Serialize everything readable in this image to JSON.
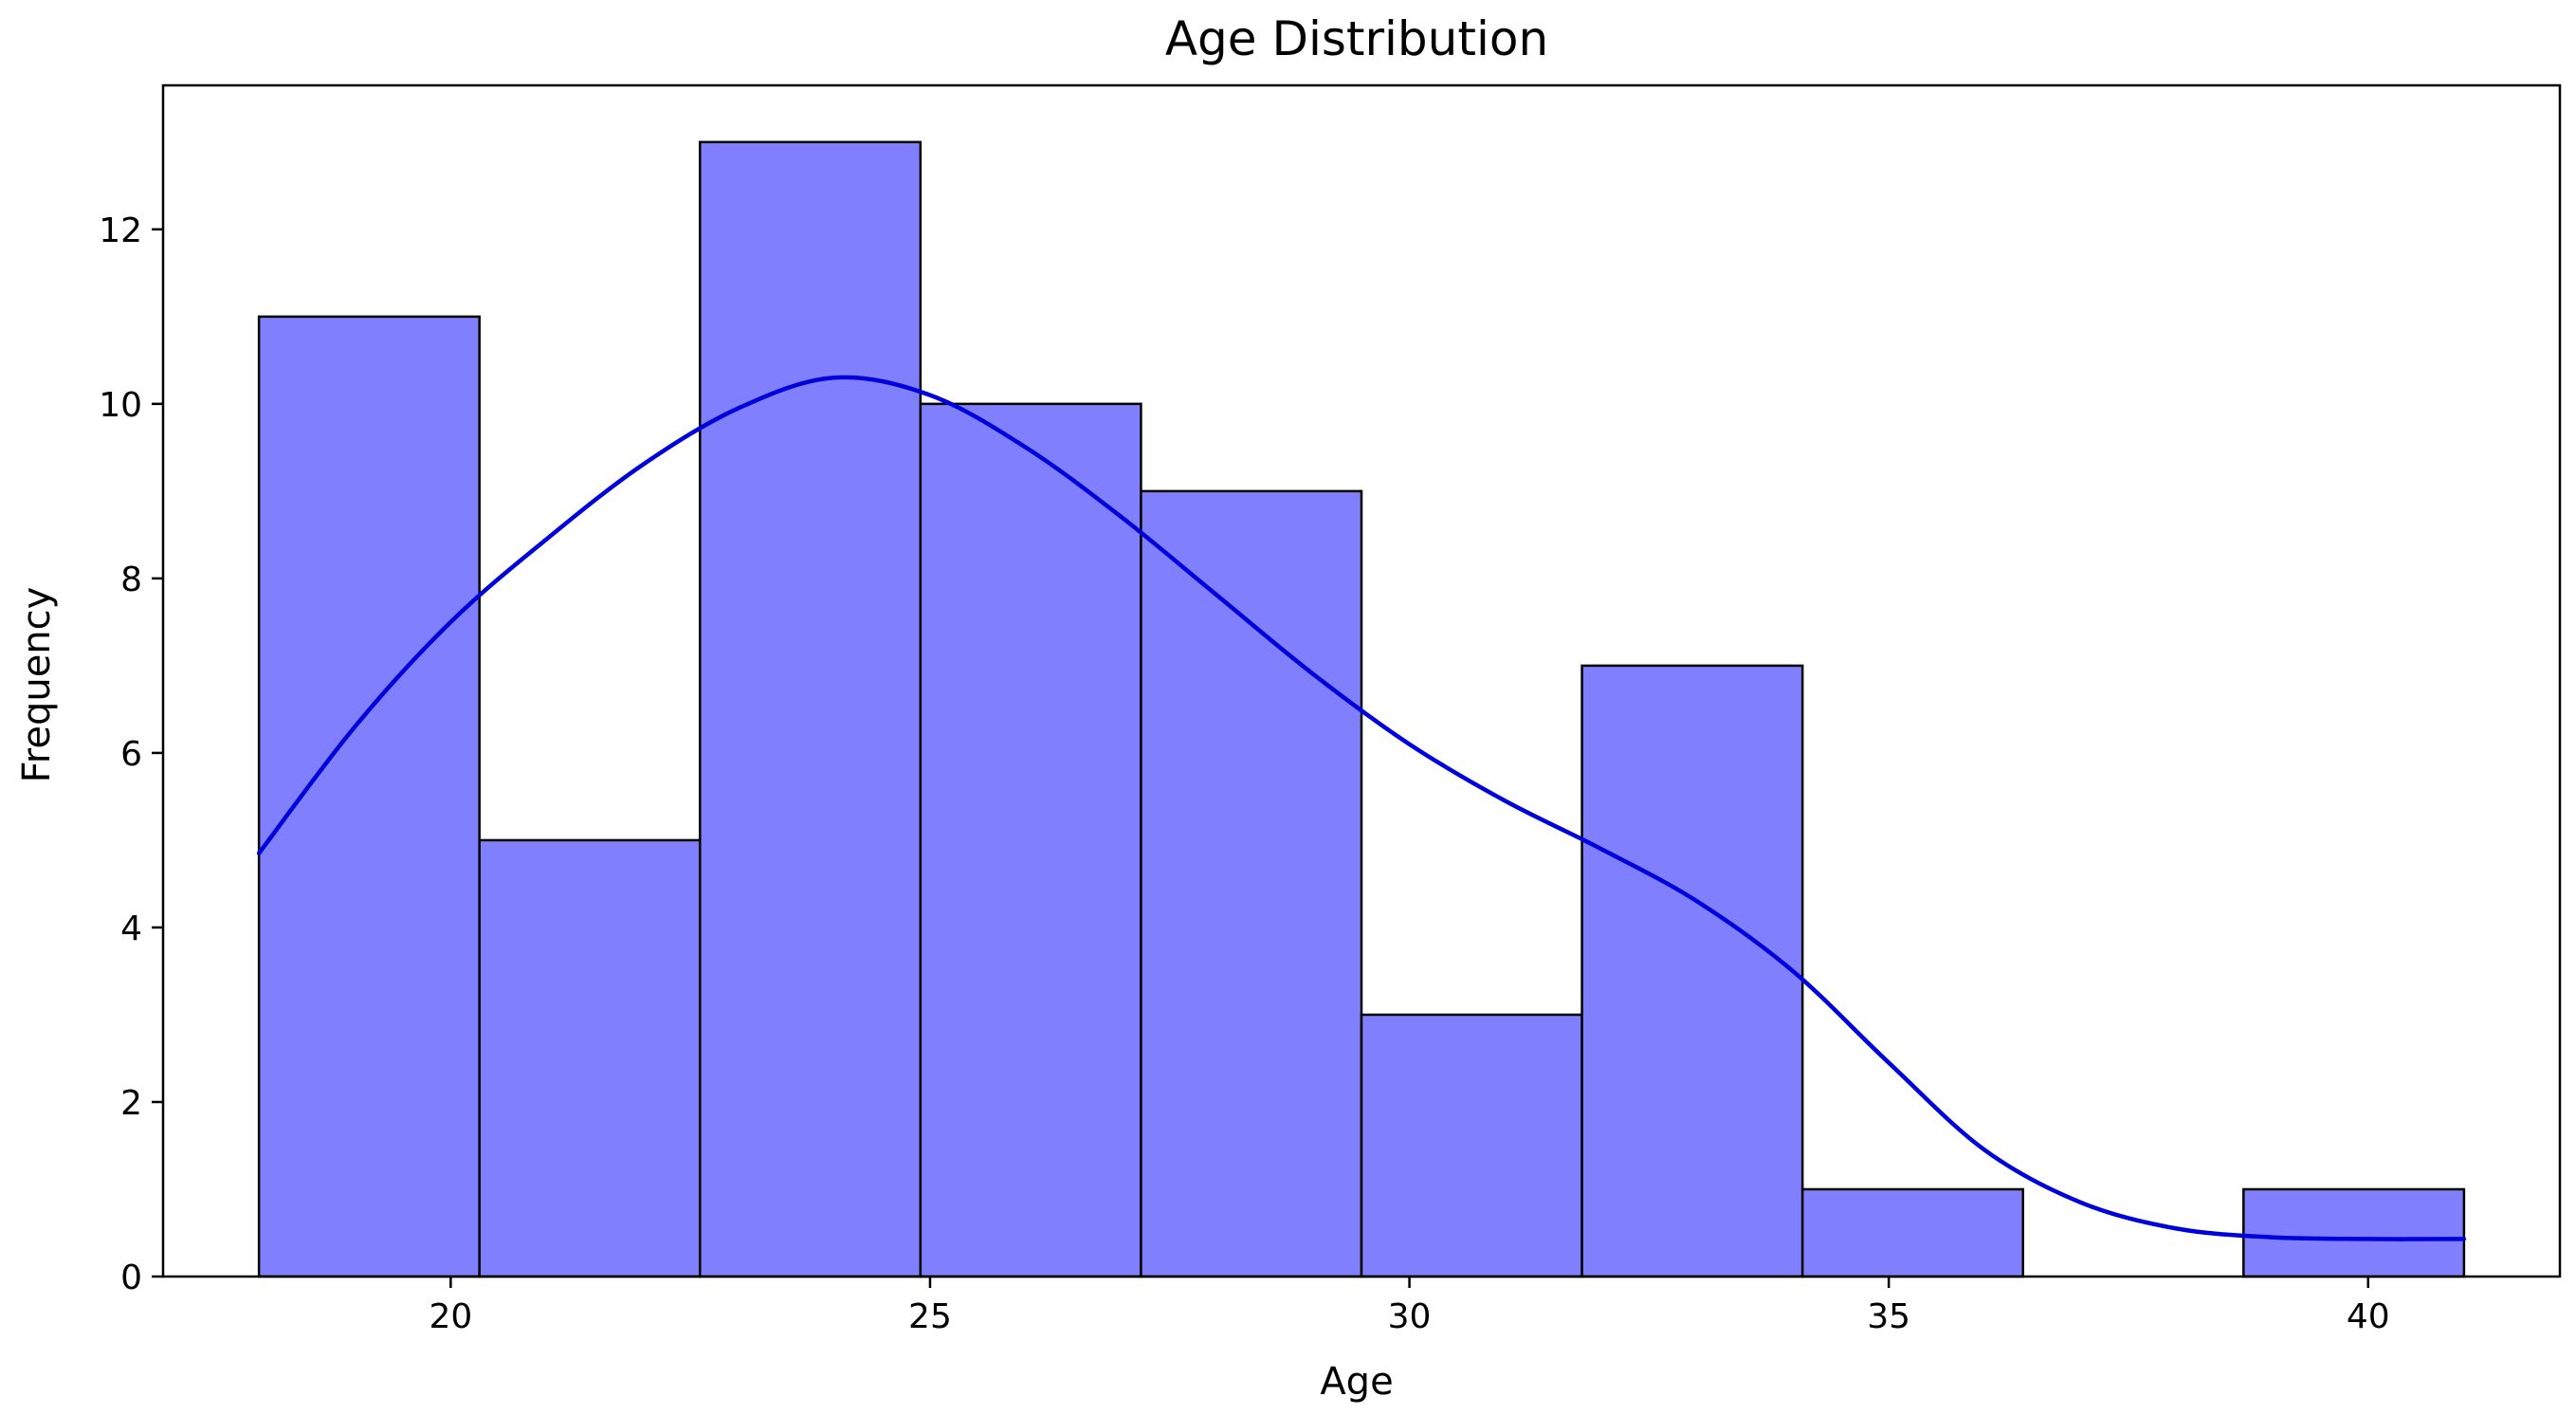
{
  "chart_data": {
    "type": "bar",
    "title": "Age Distribution",
    "xlabel": "Age",
    "ylabel": "Frequency",
    "xlim": [
      17.0,
      42.0
    ],
    "ylim": [
      0,
      13.65
    ],
    "xticks": [
      20,
      25,
      30,
      35,
      40
    ],
    "yticks": [
      0,
      2,
      4,
      6,
      8,
      10,
      12
    ],
    "grid": false,
    "bar_color": "#8080ff",
    "edge_color": "#000000",
    "line_color": "#0000dd",
    "bins": [
      {
        "start": 18.0,
        "end": 20.3,
        "count": 11
      },
      {
        "start": 20.3,
        "end": 22.6,
        "count": 5
      },
      {
        "start": 22.6,
        "end": 24.9,
        "count": 13
      },
      {
        "start": 24.9,
        "end": 27.2,
        "count": 10
      },
      {
        "start": 27.2,
        "end": 29.5,
        "count": 9
      },
      {
        "start": 29.5,
        "end": 31.8,
        "count": 3
      },
      {
        "start": 31.8,
        "end": 34.1,
        "count": 7
      },
      {
        "start": 34.1,
        "end": 36.4,
        "count": 1
      },
      {
        "start": 36.4,
        "end": 38.7,
        "count": 0
      },
      {
        "start": 38.7,
        "end": 41.0,
        "count": 1
      }
    ],
    "kde": {
      "x": [
        18.0,
        19.0,
        20.0,
        21.0,
        22.0,
        23.0,
        24.0,
        25.0,
        26.0,
        27.0,
        28.0,
        29.0,
        30.0,
        31.0,
        32.0,
        33.0,
        34.0,
        35.0,
        36.0,
        37.0,
        38.0,
        39.0,
        40.0,
        41.0
      ],
      "y": [
        4.85,
        6.3,
        7.5,
        8.45,
        9.3,
        9.95,
        10.3,
        10.1,
        9.5,
        8.7,
        7.8,
        6.9,
        6.1,
        5.45,
        4.9,
        4.3,
        3.5,
        2.45,
        1.45,
        0.85,
        0.55,
        0.45,
        0.43,
        0.43
      ]
    }
  }
}
